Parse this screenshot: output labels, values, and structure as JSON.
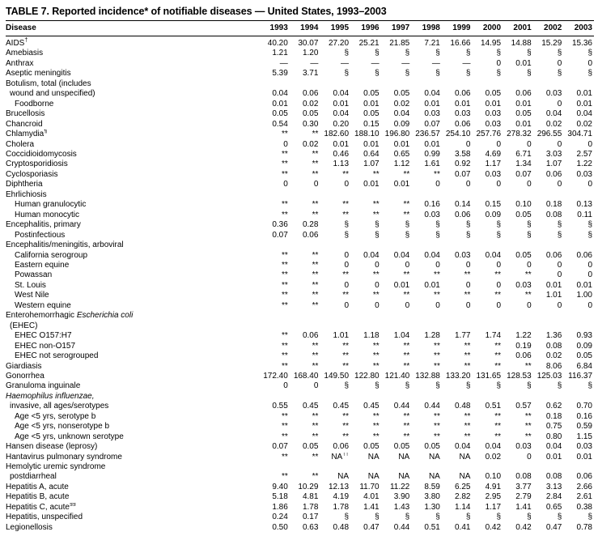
{
  "page": {
    "title": "TABLE 7. Reported incidence* of notifiable diseases — United States, 1993–2003"
  },
  "colors": {
    "text": "#000000",
    "background": "#ffffff",
    "rule": "#000000"
  },
  "table": {
    "columns": [
      "Disease",
      "1993",
      "1994",
      "1995",
      "1996",
      "1997",
      "1998",
      "1999",
      "2000",
      "2001",
      "2002",
      "2003"
    ],
    "rows": [
      {
        "label": "AIDS",
        "sup": "†",
        "indent": 0,
        "values": [
          "40.20",
          "30.07",
          "27.20",
          "25.21",
          "21.85",
          "7.21",
          "16.66",
          "14.95",
          "14.88",
          "15.29",
          "15.36"
        ]
      },
      {
        "label": "Amebiasis",
        "indent": 0,
        "values": [
          "1.21",
          "1.20",
          "§",
          "§",
          "§",
          "§",
          "§",
          "§",
          "§",
          "§",
          "§"
        ]
      },
      {
        "label": "Anthrax",
        "indent": 0,
        "values": [
          "—",
          "—",
          "—",
          "—",
          "—",
          "—",
          "—",
          "0",
          "0.01",
          "0",
          "0"
        ]
      },
      {
        "label": "Aseptic meningitis",
        "indent": 0,
        "values": [
          "5.39",
          "3.71",
          "§",
          "§",
          "§",
          "§",
          "§",
          "§",
          "§",
          "§",
          "§"
        ]
      },
      {
        "label": "Botulism, total (includes",
        "indent": 0,
        "values": []
      },
      {
        "label": "wound and unspecified)",
        "indent": 1,
        "values": [
          "0.04",
          "0.06",
          "0.04",
          "0.05",
          "0.05",
          "0.04",
          "0.06",
          "0.05",
          "0.06",
          "0.03",
          "0.01"
        ]
      },
      {
        "label": "Foodborne",
        "indent": 2,
        "values": [
          "0.01",
          "0.02",
          "0.01",
          "0.01",
          "0.02",
          "0.01",
          "0.01",
          "0.01",
          "0.01",
          "0",
          "0.01"
        ]
      },
      {
        "label": "Brucellosis",
        "indent": 0,
        "values": [
          "0.05",
          "0.05",
          "0.04",
          "0.05",
          "0.04",
          "0.03",
          "0.03",
          "0.03",
          "0.05",
          "0.04",
          "0.04"
        ]
      },
      {
        "label": "Chancroid",
        "indent": 0,
        "values": [
          "0.54",
          "0.30",
          "0.20",
          "0.15",
          "0.09",
          "0.07",
          "0.06",
          "0.03",
          "0.01",
          "0.02",
          "0.02"
        ]
      },
      {
        "label": "Chlamydia",
        "sup": "¶",
        "sup_bold": true,
        "indent": 0,
        "values": [
          "**",
          "**",
          "182.60",
          "188.10",
          "196.80",
          "236.57",
          "254.10",
          "257.76",
          "278.32",
          "296.55",
          "304.71"
        ]
      },
      {
        "label": "Cholera",
        "indent": 0,
        "values": [
          "0",
          "0.02",
          "0.01",
          "0.01",
          "0.01",
          "0.01",
          "0",
          "0",
          "0",
          "0",
          "0"
        ]
      },
      {
        "label": "Coccidioidomycosis",
        "indent": 0,
        "values": [
          "**",
          "**",
          "0.46",
          "0.64",
          "0.65",
          "0.99",
          "3.58",
          "4.69",
          "6.71",
          "3.03",
          "2.57"
        ]
      },
      {
        "label": "Cryptosporidiosis",
        "indent": 0,
        "values": [
          "**",
          "**",
          "1.13",
          "1.07",
          "1.12",
          "1.61",
          "0.92",
          "1.17",
          "1.34",
          "1.07",
          "1.22"
        ]
      },
      {
        "label": "Cyclosporiasis",
        "indent": 0,
        "values": [
          "**",
          "**",
          "**",
          "**",
          "**",
          "**",
          "0.07",
          "0.03",
          "0.07",
          "0.06",
          "0.03"
        ]
      },
      {
        "label": "Diphtheria",
        "indent": 0,
        "values": [
          "0",
          "0",
          "0",
          "0.01",
          "0.01",
          "0",
          "0",
          "0",
          "0",
          "0",
          "0"
        ]
      },
      {
        "label": "Ehrlichiosis",
        "indent": 0,
        "values": []
      },
      {
        "label": "Human granulocytic",
        "indent": 2,
        "values": [
          "**",
          "**",
          "**",
          "**",
          "**",
          "0.16",
          "0.14",
          "0.15",
          "0.10",
          "0.18",
          "0.13"
        ]
      },
      {
        "label": "Human monocytic",
        "indent": 2,
        "values": [
          "**",
          "**",
          "**",
          "**",
          "**",
          "0.03",
          "0.06",
          "0.09",
          "0.05",
          "0.08",
          "0.11"
        ]
      },
      {
        "label": "Encephalitis, primary",
        "indent": 0,
        "values": [
          "0.36",
          "0.28",
          "§",
          "§",
          "§",
          "§",
          "§",
          "§",
          "§",
          "§",
          "§"
        ]
      },
      {
        "label": "Postinfectious",
        "indent": 2,
        "values": [
          "0.07",
          "0.06",
          "§",
          "§",
          "§",
          "§",
          "§",
          "§",
          "§",
          "§",
          "§"
        ]
      },
      {
        "label": "Encephalitis/meningitis, arboviral",
        "indent": 0,
        "values": []
      },
      {
        "label": "California serogroup",
        "indent": 2,
        "values": [
          "**",
          "**",
          "0",
          "0.04",
          "0.04",
          "0.04",
          "0.03",
          "0.04",
          "0.05",
          "0.06",
          "0.06"
        ]
      },
      {
        "label": "Eastern equine",
        "indent": 2,
        "values": [
          "**",
          "**",
          "0",
          "0",
          "0",
          "0",
          "0",
          "0",
          "0",
          "0",
          "0"
        ]
      },
      {
        "label": "Powassan",
        "indent": 2,
        "values": [
          "**",
          "**",
          "**",
          "**",
          "**",
          "**",
          "**",
          "**",
          "**",
          "0",
          "0"
        ]
      },
      {
        "label": "St. Louis",
        "indent": 2,
        "values": [
          "**",
          "**",
          "0",
          "0",
          "0.01",
          "0.01",
          "0",
          "0",
          "0.03",
          "0.01",
          "0.01"
        ]
      },
      {
        "label": "West Nile",
        "indent": 2,
        "values": [
          "**",
          "**",
          "**",
          "**",
          "**",
          "**",
          "**",
          "**",
          "**",
          "1.01",
          "1.00"
        ]
      },
      {
        "label": "Western equine",
        "indent": 2,
        "values": [
          "**",
          "**",
          "0",
          "0",
          "0",
          "0",
          "0",
          "0",
          "0",
          "0",
          "0"
        ]
      },
      {
        "label": "Enterohemorrhagic ",
        "italic_tail": "Escherichia coli",
        "indent": 0,
        "values": []
      },
      {
        "label": "(EHEC)",
        "indent": 1,
        "values": []
      },
      {
        "label": "EHEC O157:H7",
        "indent": 2,
        "values": [
          "**",
          "0.06",
          "1.01",
          "1.18",
          "1.04",
          "1.28",
          "1.77",
          "1.74",
          "1.22",
          "1.36",
          "0.93"
        ]
      },
      {
        "label": "EHEC non-O157",
        "indent": 2,
        "values": [
          "**",
          "**",
          "**",
          "**",
          "**",
          "**",
          "**",
          "**",
          "0.19",
          "0.08",
          "0.09"
        ]
      },
      {
        "label": "EHEC not serogrouped",
        "indent": 2,
        "values": [
          "**",
          "**",
          "**",
          "**",
          "**",
          "**",
          "**",
          "**",
          "0.06",
          "0.02",
          "0.05"
        ]
      },
      {
        "label": "Giardiasis",
        "indent": 0,
        "values": [
          "**",
          "**",
          "**",
          "**",
          "**",
          "**",
          "**",
          "**",
          "**",
          "8.06",
          "6.84"
        ]
      },
      {
        "label": "Gonorrhea",
        "indent": 0,
        "values": [
          "172.40",
          "168.40",
          "149.50",
          "122.80",
          "121.40",
          "132.88",
          "133.20",
          "131.65",
          "128.53",
          "125.03",
          "116.37"
        ]
      },
      {
        "label": "Granuloma inguinale",
        "indent": 0,
        "values": [
          "0",
          "0",
          "§",
          "§",
          "§",
          "§",
          "§",
          "§",
          "§",
          "§",
          "§"
        ]
      },
      {
        "label": "Haemophilus influenzae,",
        "italic": true,
        "indent": 0,
        "values": []
      },
      {
        "label": "invasive, all ages/serotypes",
        "indent": 1,
        "values": [
          "0.55",
          "0.45",
          "0.45",
          "0.45",
          "0.44",
          "0.44",
          "0.48",
          "0.51",
          "0.57",
          "0.62",
          "0.70"
        ]
      },
      {
        "label": "Age <5 yrs, serotype b",
        "indent": 2,
        "values": [
          "**",
          "**",
          "**",
          "**",
          "**",
          "**",
          "**",
          "**",
          "**",
          "0.18",
          "0.16"
        ]
      },
      {
        "label": "Age <5 yrs, nonserotype b",
        "indent": 2,
        "values": [
          "**",
          "**",
          "**",
          "**",
          "**",
          "**",
          "**",
          "**",
          "**",
          "0.75",
          "0.59"
        ]
      },
      {
        "label": "Age <5 yrs, unknown serotype",
        "indent": 2,
        "values": [
          "**",
          "**",
          "**",
          "**",
          "**",
          "**",
          "**",
          "**",
          "**",
          "0.80",
          "1.15"
        ]
      },
      {
        "label": "Hansen disease (leprosy)",
        "indent": 0,
        "values": [
          "0.07",
          "0.05",
          "0.06",
          "0.05",
          "0.05",
          "0.05",
          "0.04",
          "0.04",
          "0.03",
          "0.04",
          "0.03"
        ]
      },
      {
        "label": "Hantavirus pulmonary syndrome",
        "indent": 0,
        "values": [
          "**",
          "**",
          "NA††",
          "NA",
          "NA",
          "NA",
          "NA",
          "0.02",
          "0",
          "0.01",
          "0.01"
        ]
      },
      {
        "label": "Hemolytic uremic syndrome",
        "indent": 0,
        "values": []
      },
      {
        "label": "postdiarrheal",
        "indent": 1,
        "values": [
          "**",
          "**",
          "NA",
          "NA",
          "NA",
          "NA",
          "NA",
          "0.10",
          "0.08",
          "0.08",
          "0.06"
        ]
      },
      {
        "label": "Hepatitis A, acute",
        "indent": 0,
        "values": [
          "9.40",
          "10.29",
          "12.13",
          "11.70",
          "11.22",
          "8.59",
          "6.25",
          "4.91",
          "3.77",
          "3.13",
          "2.66"
        ]
      },
      {
        "label": "Hepatitis B, acute",
        "indent": 0,
        "values": [
          "5.18",
          "4.81",
          "4.19",
          "4.01",
          "3.90",
          "3.80",
          "2.82",
          "2.95",
          "2.79",
          "2.84",
          "2.61"
        ]
      },
      {
        "label": "Hepatitis C, acute",
        "sup": "§§",
        "indent": 0,
        "values": [
          "1.86",
          "1.78",
          "1.78",
          "1.41",
          "1.43",
          "1.30",
          "1.14",
          "1.17",
          "1.41",
          "0.65",
          "0.38"
        ]
      },
      {
        "label": "Hepatitis, unspecified",
        "indent": 0,
        "values": [
          "0.24",
          "0.17",
          "§",
          "§",
          "§",
          "§",
          "§",
          "§",
          "§",
          "§",
          "§"
        ]
      },
      {
        "label": "Legionellosis",
        "indent": 0,
        "values": [
          "0.50",
          "0.63",
          "0.48",
          "0.47",
          "0.44",
          "0.51",
          "0.41",
          "0.42",
          "0.42",
          "0.47",
          "0.78"
        ]
      }
    ]
  }
}
